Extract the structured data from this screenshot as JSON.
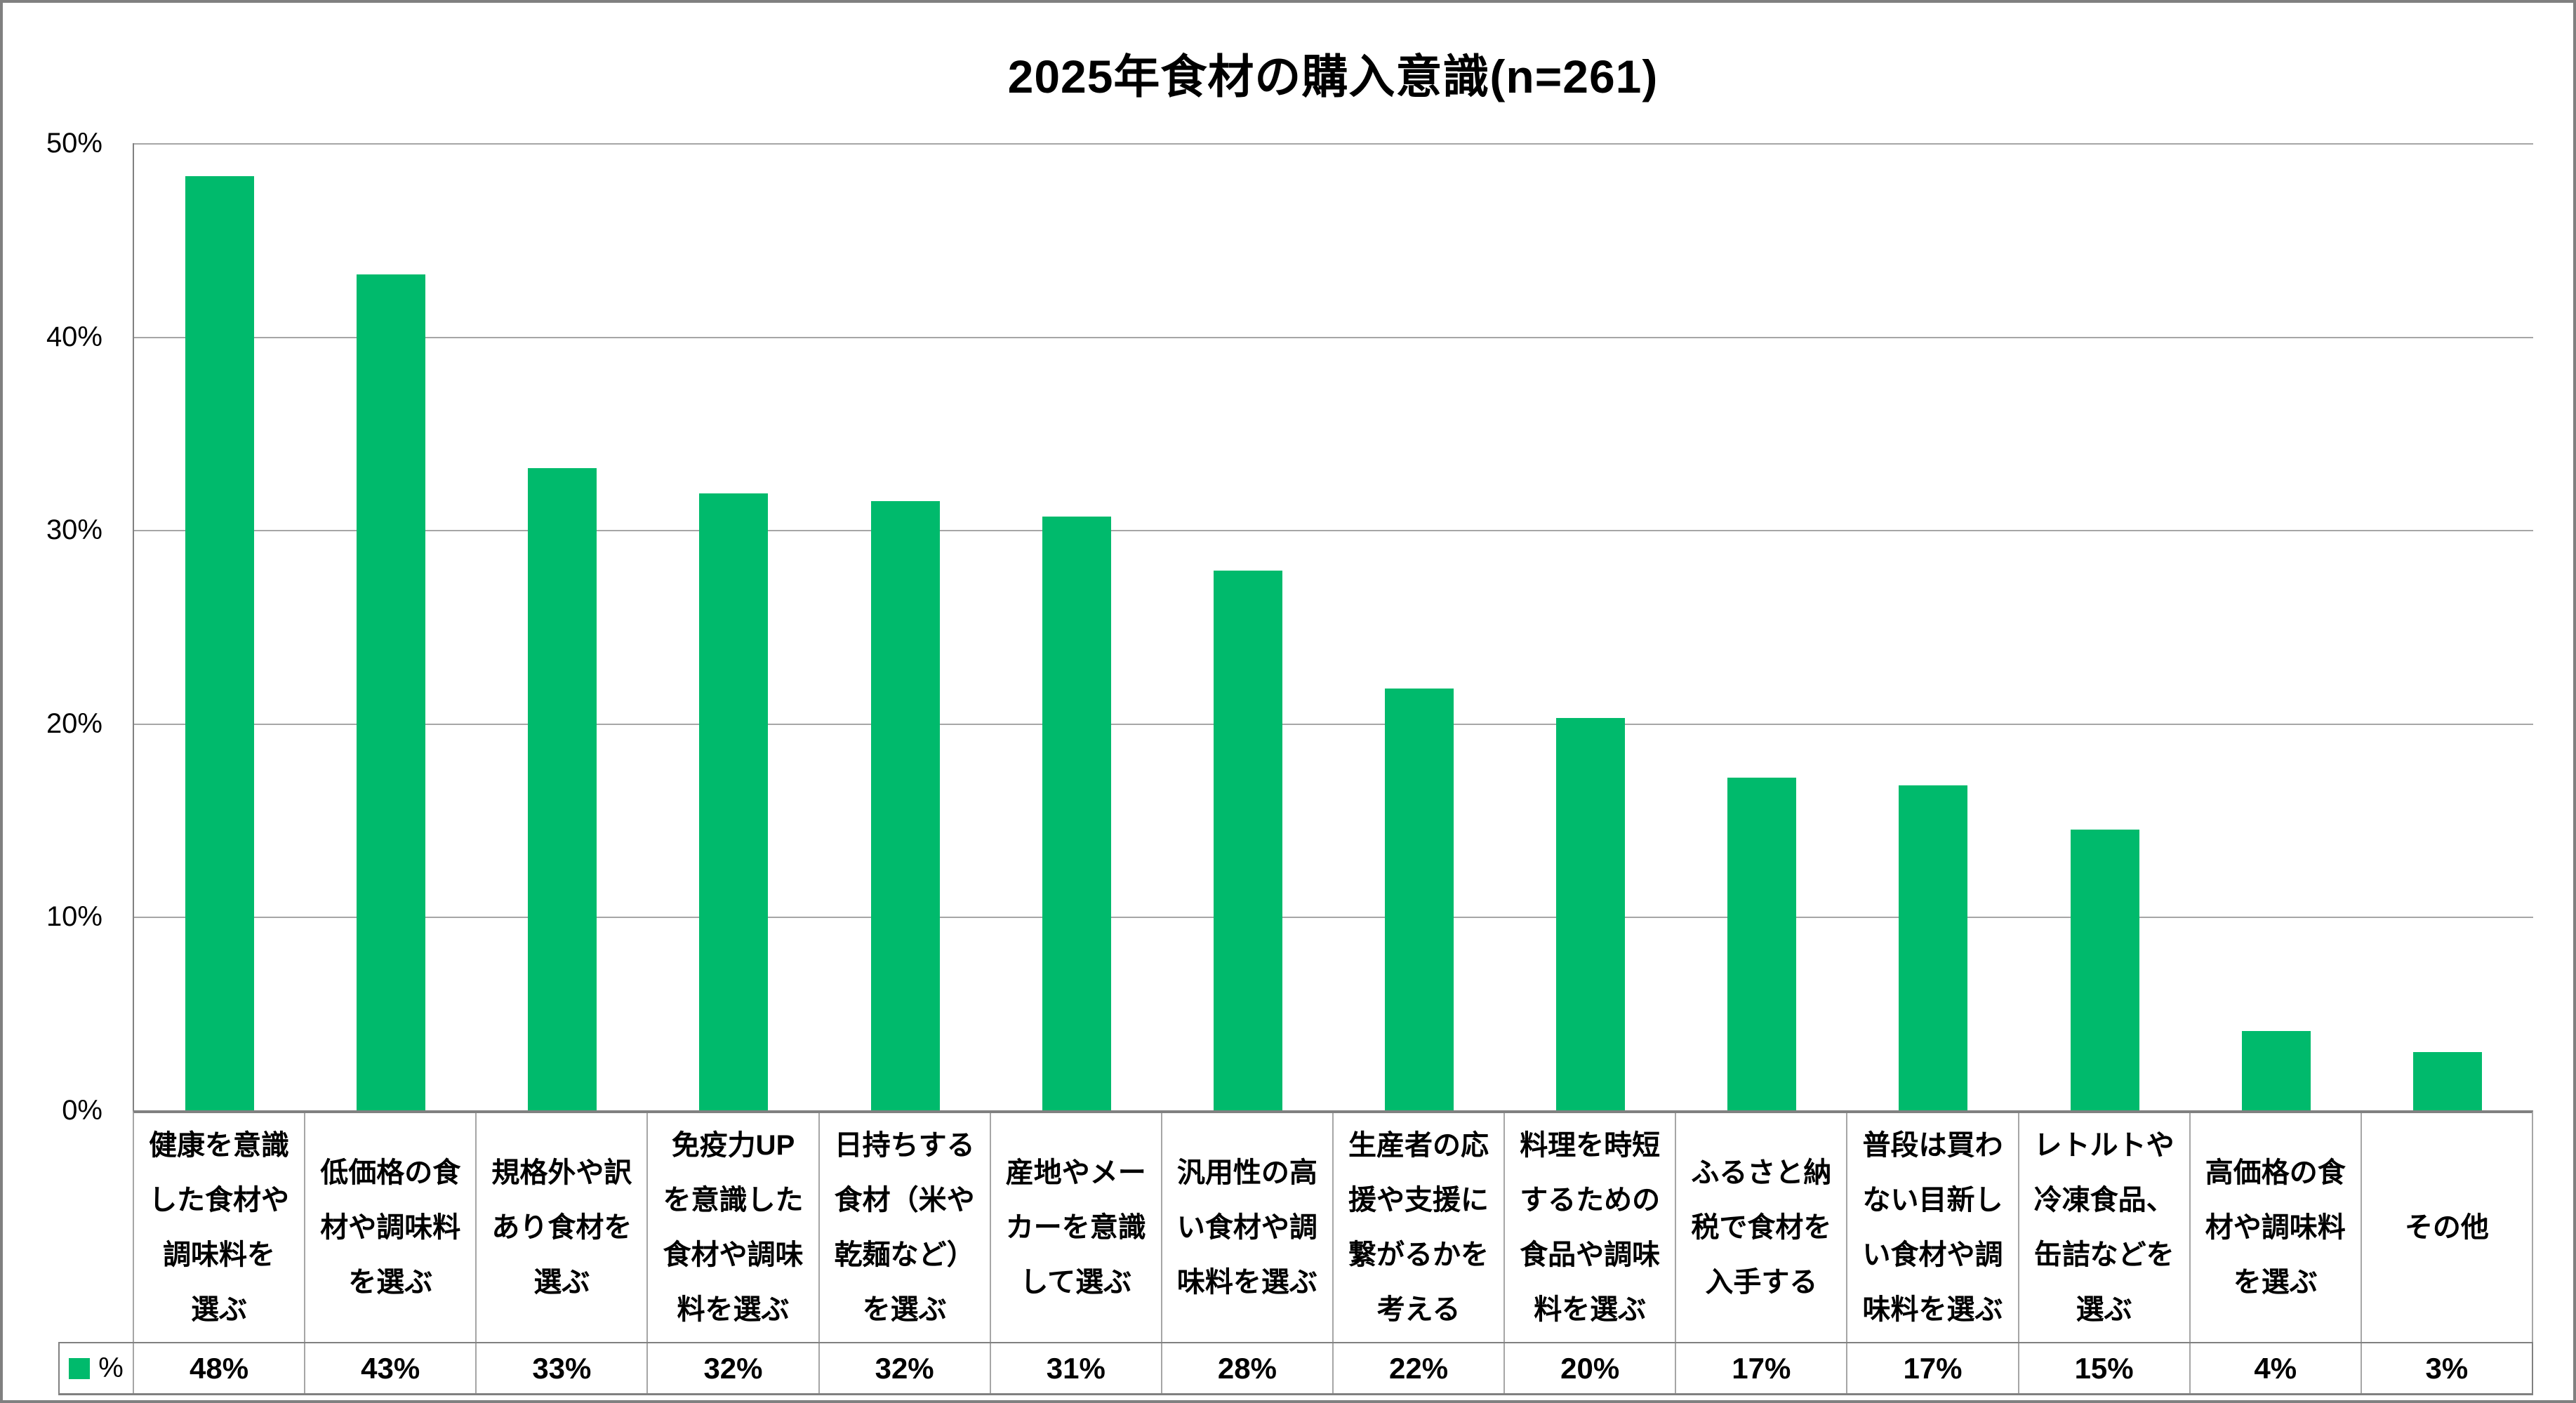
{
  "title": "2025年食材の購入意識(n=261)",
  "colors": {
    "bar": "#00ba6c",
    "gridline": "#a6a6a6",
    "axis": "#808080",
    "text": "#000000",
    "background": "#ffffff"
  },
  "chart_data": {
    "type": "bar",
    "title": "2025年食材の購入意識(n=261)",
    "xlabel": "",
    "ylabel": "",
    "ylim": [
      0,
      50
    ],
    "grid": true,
    "ytick_values": [
      0,
      10,
      20,
      30,
      40,
      50
    ],
    "ytick_labels": [
      "0%",
      "10%",
      "20%",
      "30%",
      "40%",
      "50%"
    ],
    "categories": [
      "健康を意識した食材や調味料を選ぶ",
      "低価格の食材や調味料を選ぶ",
      "規格外や訳あり食材を選ぶ",
      "免疫力UPを意識した食材や調味料を選ぶ",
      "日持ちする食材（米や乾麺など）を選ぶ",
      "産地やメーカーを意識して選ぶ",
      "汎用性の高い食材や調味料を選ぶ",
      "生産者の応援や支援に繋がるかを考える",
      "料理を時短するための食品や調味料を選ぶ",
      "ふるさと納税で食材を入手する",
      "普段は買わない目新しい食材や調味料を選ぶ",
      "レトルトや冷凍食品、缶詰などを選ぶ",
      "高価格の食材や調味料を選ぶ",
      "その他"
    ],
    "category_line_breaks": [
      "健康を意識\nした食材や\n調味料を\n選ぶ",
      "低価格の食\n材や調味料\nを選ぶ",
      "規格外や訳\nあり食材を\n選ぶ",
      "免疫力UP\nを意識した\n食材や調味\n料を選ぶ",
      "日持ちする\n食材（米や\n乾麺など）\nを選ぶ",
      "産地やメー\nカーを意識\nして選ぶ",
      "汎用性の高\nい食材や調\n味料を選ぶ",
      "生産者の応\n援や支援に\n繋がるかを\n考える",
      "料理を時短\nするための\n食品や調味\n料を選ぶ",
      "ふるさと納\n税で食材を\n入手する",
      "普段は買わ\nない目新し\nい食材や調\n味料を選ぶ",
      "レトルトや\n冷凍食品、\n缶詰などを\n選ぶ",
      "高価格の食\n材や調味料\nを選ぶ",
      "その他"
    ],
    "series": [
      {
        "name": "%",
        "values": [
          48,
          43,
          33,
          32,
          32,
          31,
          28,
          22,
          20,
          17,
          17,
          15,
          4,
          3
        ],
        "value_labels": [
          "48%",
          "43%",
          "33%",
          "32%",
          "32%",
          "31%",
          "28%",
          "22%",
          "20%",
          "17%",
          "17%",
          "15%",
          "4%",
          "3%"
        ],
        "bar_heights_pct": [
          48.3,
          43.2,
          33.2,
          31.9,
          31.5,
          30.7,
          27.9,
          21.8,
          20.3,
          17.2,
          16.8,
          14.5,
          4.1,
          3.0
        ]
      }
    ],
    "legend": {
      "position": "bottom-left",
      "label": "%",
      "swatch_color": "#00ba6c"
    }
  }
}
